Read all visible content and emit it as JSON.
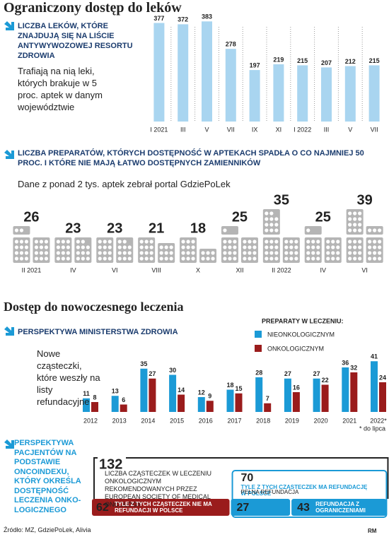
{
  "title": "Ograniczony dostęp do leków",
  "section_title": "Dostęp do nowoczesnego leczenia",
  "source": "Źródło: MZ, GdziePoLek, Alivia",
  "credit": "RM",
  "chart_data": [
    {
      "type": "bar",
      "title": "LICZBA LEKÓW, KTÓRE ZNAJDUJĄ SIĘ NA LIŚCIE ANTYWYWOZOWEJ RESORTU ZDROWIA",
      "subtitle": "Trafiają na nią leki, których brakuje w 5 proc. aptek w danym województwie",
      "categories": [
        "I 2021",
        "III",
        "V",
        "VII",
        "IX",
        "XI",
        "I 2022",
        "III",
        "V",
        "VII"
      ],
      "values": [
        377,
        372,
        383,
        278,
        197,
        219,
        215,
        207,
        212,
        215
      ],
      "color": "#a9d5f0"
    },
    {
      "type": "pictogram",
      "title": "LICZBA PREPARATÓW, KTÓRYCH DOSTĘPNOŚĆ W APTEKACH SPADŁA O CO NAJMNIEJ 50 PROC. I KTÓRE NIE MAJĄ ŁATWO DOSTĘPNYCH ZAMIENNIKÓW",
      "subtitle": "Dane z ponad 2 tys. aptek zebrał portal GdziePoLek",
      "categories": [
        "II 2021",
        "IV",
        "VI",
        "VIII",
        "X",
        "XII",
        "II 2022",
        "IV",
        "VI"
      ],
      "values": [
        26,
        23,
        23,
        21,
        18,
        25,
        35,
        25,
        39
      ],
      "color": "#b5b5b5"
    },
    {
      "type": "grouped_bar",
      "title": "PERSPEKTYWA MINISTERSTWA ZDROWIA",
      "subtitle": "Nowe cząsteczki, które weszły na listy refundacyjne",
      "legend_title": "PREPARATY W LECZENIU:",
      "note": "* do lipca",
      "categories": [
        "2012",
        "2013",
        "2014",
        "2015",
        "2016",
        "2017",
        "2018",
        "2019",
        "2020",
        "2021",
        "2022*"
      ],
      "series": [
        {
          "name": "NIEONKOLOGICZNYM",
          "color": "#1b9ad6",
          "values": [
            11,
            13,
            35,
            30,
            12,
            18,
            28,
            27,
            27,
            36,
            41
          ]
        },
        {
          "name": "ONKOLOGICZNYM",
          "color": "#9a1c1c",
          "values": [
            8,
            6,
            27,
            14,
            9,
            15,
            7,
            16,
            22,
            32,
            24
          ]
        }
      ]
    },
    {
      "type": "breakdown",
      "title": "PERSPEKTYWA PACJENTÓW NA PODSTAWIE ONCOINDEXU, KTÓRY OKREŚLA DOSTĘPNOŚĆ LECZENIA ONKO-LOGICZNEGO",
      "total": 132,
      "total_label": "LICZBA CZĄSTECZEK W LECZENIU ONKOLOGICZNYM REKOMENDOWANYCH PRZEZ EUROPEAN SOCIETY OF MEDICAL ONCOLOGY",
      "segments": [
        {
          "value": 62,
          "label": "TYLE Z TYCH CZĄSTECZEK NIE MA REFUNDACJI W POLSCE",
          "color": "#9a1c1c"
        },
        {
          "value": 70,
          "label": "TYLE Z TYCH CZĄSTECZEK MA REFUNDACJĘ W POLSCE",
          "color": "#1b9ad6",
          "parts": [
            {
              "value": 27,
              "label": "PEŁNA REFUNDACJA"
            },
            {
              "value": 43,
              "label": "REFUNDACJA Z OGRANICZENIAMI"
            }
          ]
        }
      ]
    }
  ]
}
